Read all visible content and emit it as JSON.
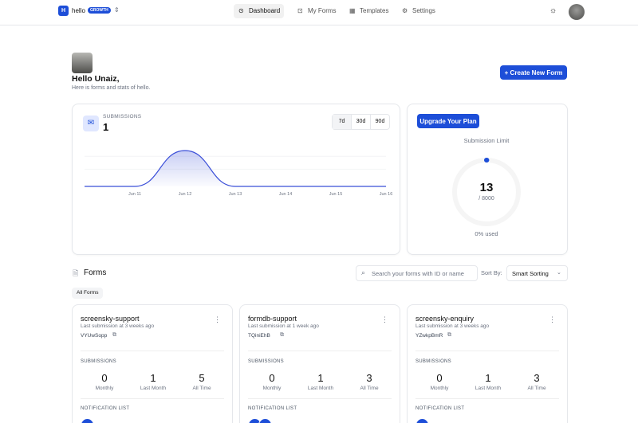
{
  "nav": {
    "brand_letter": "H",
    "workspace": "hello",
    "plan_badge": "GROWTH",
    "items": [
      "Dashboard",
      "My Forms",
      "Templates",
      "Settings"
    ]
  },
  "greeting": {
    "title": "Hello Unaiz,",
    "subtitle": "Here is forms and stats of hello."
  },
  "create_button": "Create New Form",
  "stats": {
    "label": "SUBMISSIONS",
    "total": 1,
    "ranges": [
      "7d",
      "30d",
      "90d"
    ]
  },
  "chart_data": {
    "type": "area",
    "categories": [
      null,
      "Jun 11",
      "Jun 12",
      "Jun 13",
      "Jun 14",
      "Jun 15",
      "Jun 16"
    ],
    "values": [
      0,
      0,
      1,
      0,
      0,
      0,
      0
    ],
    "color": "#3b4fd8",
    "ylim": [
      0,
      1.2
    ]
  },
  "plan": {
    "button": "Upgrade Your Plan",
    "title": "Submission Limit",
    "used": 13,
    "limit": {
      "value": 8000,
      "label": "/ 8000"
    },
    "percent_label": "0% used"
  },
  "forms": {
    "title": "Forms",
    "search_placeholder": "Search your forms with ID or name",
    "sort_label": "Sort By:",
    "sort_value": "Smart Sorting",
    "tab": "All Forms",
    "section_label": "SUBMISSIONS",
    "notification_label": "NOTIFICATION LIST",
    "stat_labels": [
      "Monthly",
      "Last Month",
      "All Time"
    ],
    "cards": [
      {
        "name": "screensky-support",
        "last": "Last submission at 3 weeks ago",
        "id": "VYUwSopp",
        "stats": [
          0,
          1,
          5
        ]
      },
      {
        "name": "formdb-support",
        "last": "Last submission at 1 week ago",
        "id": "TQiniEhB",
        "stats": [
          0,
          1,
          3
        ]
      },
      {
        "name": "screensky-enquiry",
        "last": "Last submission at 3 weeks ago",
        "id": "YZwkpBmR",
        "stats": [
          0,
          1,
          3
        ]
      }
    ]
  }
}
